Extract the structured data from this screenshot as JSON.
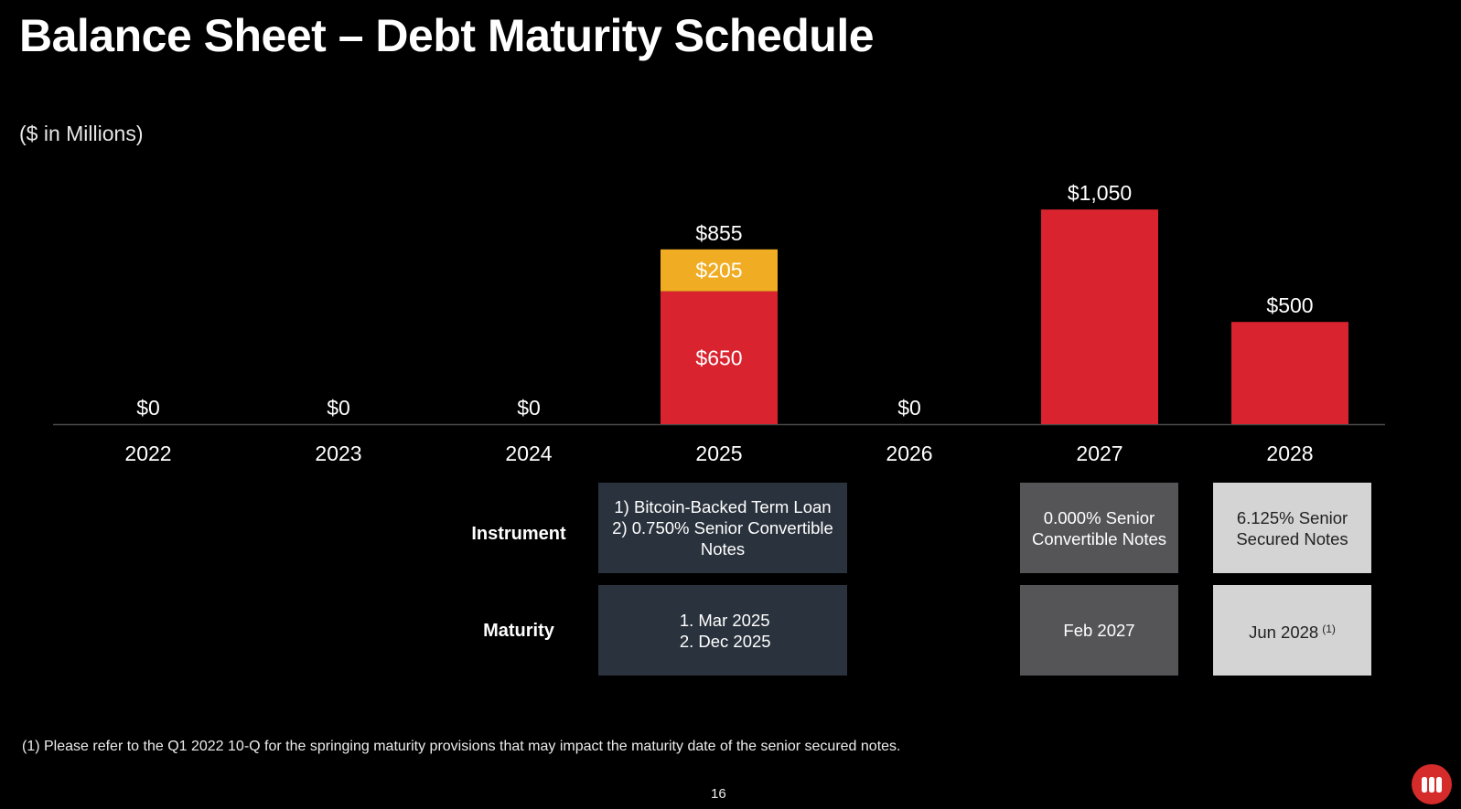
{
  "title": "Balance Sheet – Debt Maturity Schedule",
  "subtitle": "($ in Millions)",
  "colors": {
    "background": "#000000",
    "red": "#d9232e",
    "gold": "#f0ac22",
    "axis": "#4a4a4a"
  },
  "chart_data": {
    "type": "bar",
    "stacked": true,
    "categories": [
      "2022",
      "2023",
      "2024",
      "2025",
      "2026",
      "2027",
      "2028"
    ],
    "series": [
      {
        "values": [
          0,
          0,
          0,
          650,
          0,
          1050,
          500
        ],
        "color": "#d9232e"
      },
      {
        "values": [
          0,
          0,
          0,
          205,
          0,
          0,
          0
        ],
        "color": "#f0ac22"
      }
    ],
    "totals": [
      "$0",
      "$0",
      "$0",
      "$855",
      "$0",
      "$1,050",
      "$500"
    ],
    "segment_labels": [
      {
        "category": "2025",
        "series": 0,
        "label": "$650"
      },
      {
        "category": "2025",
        "series": 1,
        "label": "$205"
      }
    ],
    "ylim": [
      0,
      1100
    ],
    "grid": false,
    "legend": "none"
  },
  "table": {
    "instrument_label": "Instrument",
    "maturity_label": "Maturity",
    "instrument_2025": [
      "1) Bitcoin-Backed Term Loan",
      "2) 0.750% Senior Convertible",
      "Notes"
    ],
    "maturity_2025": [
      "Mar 2025",
      "Dec 2025"
    ],
    "instrument_2027": [
      "0.000% Senior",
      "Convertible Notes"
    ],
    "maturity_2027": "Feb 2027",
    "instrument_2028": [
      "6.125% Senior",
      "Secured Notes"
    ],
    "maturity_2028": "Jun 2028",
    "maturity_2028_note": "(1)"
  },
  "footnote": "(1)  Please refer to the Q1 2022 10-Q for the springing maturity provisions that may impact the maturity date of the senior secured notes.",
  "page_number": "16",
  "logo_icon": "company-logo-icon"
}
